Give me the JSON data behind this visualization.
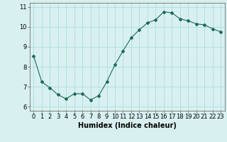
{
  "x": [
    0,
    1,
    2,
    3,
    4,
    5,
    6,
    7,
    8,
    9,
    10,
    11,
    12,
    13,
    14,
    15,
    16,
    17,
    18,
    19,
    20,
    21,
    22,
    23
  ],
  "y": [
    8.55,
    7.25,
    6.95,
    6.6,
    6.4,
    6.65,
    6.65,
    6.35,
    6.55,
    7.25,
    8.1,
    8.8,
    9.45,
    9.85,
    10.2,
    10.35,
    10.75,
    10.7,
    10.4,
    10.3,
    10.15,
    10.1,
    9.9,
    9.75
  ],
  "line_color": "#1a6b5a",
  "marker": "D",
  "markersize": 2,
  "linewidth": 0.8,
  "bg_color": "#d9f0f0",
  "grid_color": "#aadddd",
  "xlabel": "Humidex (Indice chaleur)",
  "xlabel_fontsize": 7,
  "tick_fontsize": 6,
  "ylim": [
    5.8,
    11.2
  ],
  "xlim": [
    -0.5,
    23.5
  ],
  "yticks": [
    6,
    7,
    8,
    9,
    10,
    11
  ],
  "xticks": [
    0,
    1,
    2,
    3,
    4,
    5,
    6,
    7,
    8,
    9,
    10,
    11,
    12,
    13,
    14,
    15,
    16,
    17,
    18,
    19,
    20,
    21,
    22,
    23
  ]
}
